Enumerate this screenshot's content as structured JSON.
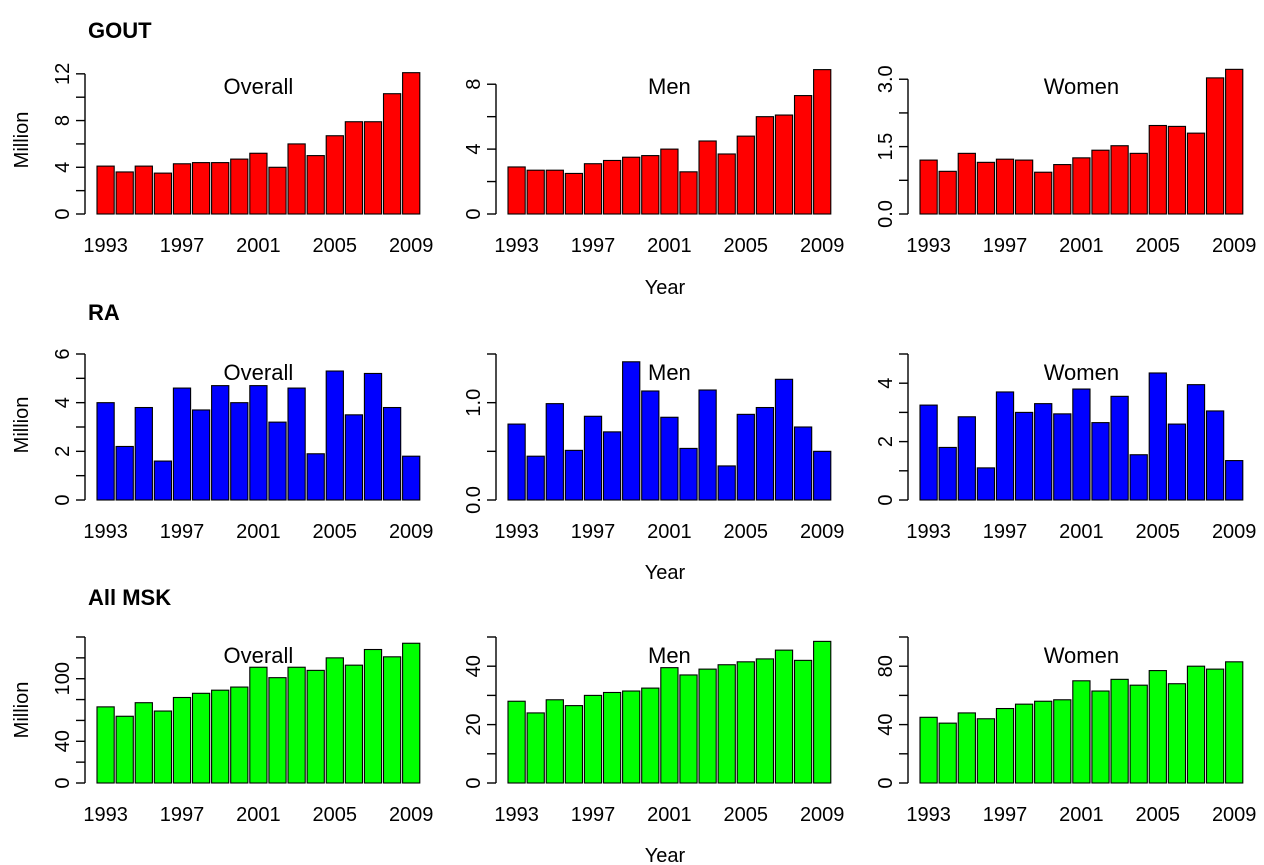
{
  "rows": [
    {
      "title": "GOUT",
      "ylabel": "Million"
    },
    {
      "title": "RA",
      "ylabel": "Million"
    },
    {
      "title": "All MSK",
      "ylabel": "Million"
    }
  ],
  "xlabels": [
    "Year",
    "Year",
    "Year"
  ],
  "chart_data": [
    {
      "type": "bar",
      "group": "GOUT",
      "title": "Overall",
      "color": "#ff0000",
      "x": [
        1993,
        1994,
        1995,
        1996,
        1997,
        1998,
        1999,
        2000,
        2001,
        2002,
        2003,
        2004,
        2005,
        2006,
        2007,
        2008,
        2009
      ],
      "xticks": [
        "1993",
        "1997",
        "2001",
        "2005",
        "2009"
      ],
      "values": [
        4.1,
        3.6,
        4.1,
        3.5,
        4.3,
        4.4,
        4.4,
        4.7,
        5.2,
        4.0,
        6.0,
        5.0,
        6.7,
        7.9,
        7.9,
        10.3,
        12.1
      ],
      "ylim": [
        0,
        12.5
      ],
      "yticks": [
        "0",
        "4",
        "8",
        "12"
      ],
      "yminor": [
        2,
        6,
        10
      ]
    },
    {
      "type": "bar",
      "group": "GOUT",
      "title": "Men",
      "color": "#ff0000",
      "x": [
        1993,
        1994,
        1995,
        1996,
        1997,
        1998,
        1999,
        2000,
        2001,
        2002,
        2003,
        2004,
        2005,
        2006,
        2007,
        2008,
        2009
      ],
      "xticks": [
        "1993",
        "1997",
        "2001",
        "2005",
        "2009"
      ],
      "values": [
        2.9,
        2.7,
        2.7,
        2.5,
        3.1,
        3.3,
        3.5,
        3.6,
        4.0,
        2.6,
        4.5,
        3.7,
        4.8,
        6.0,
        6.1,
        7.3,
        8.9
      ],
      "ylim": [
        0,
        9
      ],
      "yticks": [
        "0",
        "4",
        "8"
      ],
      "yminor": [
        2,
        6
      ]
    },
    {
      "type": "bar",
      "group": "GOUT",
      "title": "Women",
      "color": "#ff0000",
      "x": [
        1993,
        1994,
        1995,
        1996,
        1997,
        1998,
        1999,
        2000,
        2001,
        2002,
        2003,
        2004,
        2005,
        2006,
        2007,
        2008,
        2009
      ],
      "xticks": [
        "1993",
        "1997",
        "2001",
        "2005",
        "2009"
      ],
      "values": [
        1.2,
        0.95,
        1.35,
        1.15,
        1.22,
        1.2,
        0.93,
        1.1,
        1.25,
        1.42,
        1.52,
        1.35,
        1.97,
        1.95,
        1.8,
        3.03,
        3.22
      ],
      "ylim": [
        0,
        3.25
      ],
      "yticks": [
        "0.0",
        "1.5",
        "3.0"
      ],
      "yminor": [
        0.75,
        2.25
      ]
    },
    {
      "type": "bar",
      "group": "RA",
      "title": "Overall",
      "color": "#0000ff",
      "x": [
        1993,
        1994,
        1995,
        1996,
        1997,
        1998,
        1999,
        2000,
        2001,
        2002,
        2003,
        2004,
        2005,
        2006,
        2007,
        2008,
        2009
      ],
      "xticks": [
        "1993",
        "1997",
        "2001",
        "2005",
        "2009"
      ],
      "values": [
        4.0,
        2.2,
        3.8,
        1.6,
        4.6,
        3.7,
        4.7,
        4.0,
        4.7,
        3.2,
        4.6,
        1.9,
        5.3,
        3.5,
        5.2,
        3.8,
        1.8
      ],
      "ylim": [
        0,
        6
      ],
      "yticks": [
        "0",
        "2",
        "4",
        "6"
      ],
      "yminor": [
        1,
        3,
        5
      ]
    },
    {
      "type": "bar",
      "group": "RA",
      "title": "Men",
      "color": "#0000ff",
      "x": [
        1993,
        1994,
        1995,
        1996,
        1997,
        1998,
        1999,
        2000,
        2001,
        2002,
        2003,
        2004,
        2005,
        2006,
        2007,
        2008,
        2009
      ],
      "xticks": [
        "1993",
        "1997",
        "2001",
        "2005",
        "2009"
      ],
      "values": [
        0.78,
        0.45,
        0.99,
        0.51,
        0.86,
        0.7,
        1.42,
        1.12,
        0.85,
        0.53,
        1.13,
        0.35,
        0.88,
        0.95,
        1.24,
        0.75,
        0.5
      ],
      "ylim": [
        0,
        1.5
      ],
      "yticks": [
        "0.0",
        "1.0"
      ],
      "yminor": [
        0.5,
        1.5
      ]
    },
    {
      "type": "bar",
      "group": "RA",
      "title": "Women",
      "color": "#0000ff",
      "x": [
        1993,
        1994,
        1995,
        1996,
        1997,
        1998,
        1999,
        2000,
        2001,
        2002,
        2003,
        2004,
        2005,
        2006,
        2007,
        2008,
        2009
      ],
      "xticks": [
        "1993",
        "1997",
        "2001",
        "2005",
        "2009"
      ],
      "values": [
        3.25,
        1.8,
        2.85,
        1.1,
        3.7,
        3.0,
        3.3,
        2.95,
        3.8,
        2.65,
        3.55,
        1.55,
        4.35,
        2.6,
        3.95,
        3.05,
        1.35
      ],
      "ylim": [
        0,
        5
      ],
      "yticks": [
        "0",
        "2",
        "4"
      ],
      "yminor": [
        1,
        3,
        5
      ]
    },
    {
      "type": "bar",
      "group": "All MSK",
      "title": "Overall",
      "color": "#00ff00",
      "x": [
        1993,
        1994,
        1995,
        1996,
        1997,
        1998,
        1999,
        2000,
        2001,
        2002,
        2003,
        2004,
        2005,
        2006,
        2007,
        2008,
        2009
      ],
      "xticks": [
        "1993",
        "1997",
        "2001",
        "2005",
        "2009"
      ],
      "values": [
        73,
        64,
        77,
        69,
        82,
        86,
        89,
        92,
        111,
        101,
        111,
        108,
        120,
        113,
        128,
        121,
        134
      ],
      "ylim": [
        0,
        140
      ],
      "yticks": [
        "0",
        "40",
        "100"
      ],
      "yminor": [
        20,
        60,
        80,
        120,
        140
      ]
    },
    {
      "type": "bar",
      "group": "All MSK",
      "title": "Men",
      "color": "#00ff00",
      "x": [
        1993,
        1994,
        1995,
        1996,
        1997,
        1998,
        1999,
        2000,
        2001,
        2002,
        2003,
        2004,
        2005,
        2006,
        2007,
        2008,
        2009
      ],
      "xticks": [
        "1993",
        "1997",
        "2001",
        "2005",
        "2009"
      ],
      "values": [
        28,
        24,
        28.5,
        26.5,
        30,
        31,
        31.5,
        32.5,
        39.5,
        37,
        39,
        40.5,
        41.5,
        42.5,
        45.5,
        42,
        48.5
      ],
      "ylim": [
        0,
        50
      ],
      "yticks": [
        "0",
        "20",
        "40"
      ],
      "yminor": [
        10,
        30,
        50
      ]
    },
    {
      "type": "bar",
      "group": "All MSK",
      "title": "Women",
      "color": "#00ff00",
      "x": [
        1993,
        1994,
        1995,
        1996,
        1997,
        1998,
        1999,
        2000,
        2001,
        2002,
        2003,
        2004,
        2005,
        2006,
        2007,
        2008,
        2009
      ],
      "xticks": [
        "1993",
        "1997",
        "2001",
        "2005",
        "2009"
      ],
      "values": [
        45,
        41,
        48,
        44,
        51,
        54,
        56,
        57,
        70,
        63,
        71,
        67,
        77,
        68,
        80,
        78,
        83
      ],
      "ylim": [
        0,
        100
      ],
      "yticks": [
        "0",
        "40",
        "80"
      ],
      "yminor": [
        20,
        60,
        100
      ]
    }
  ]
}
